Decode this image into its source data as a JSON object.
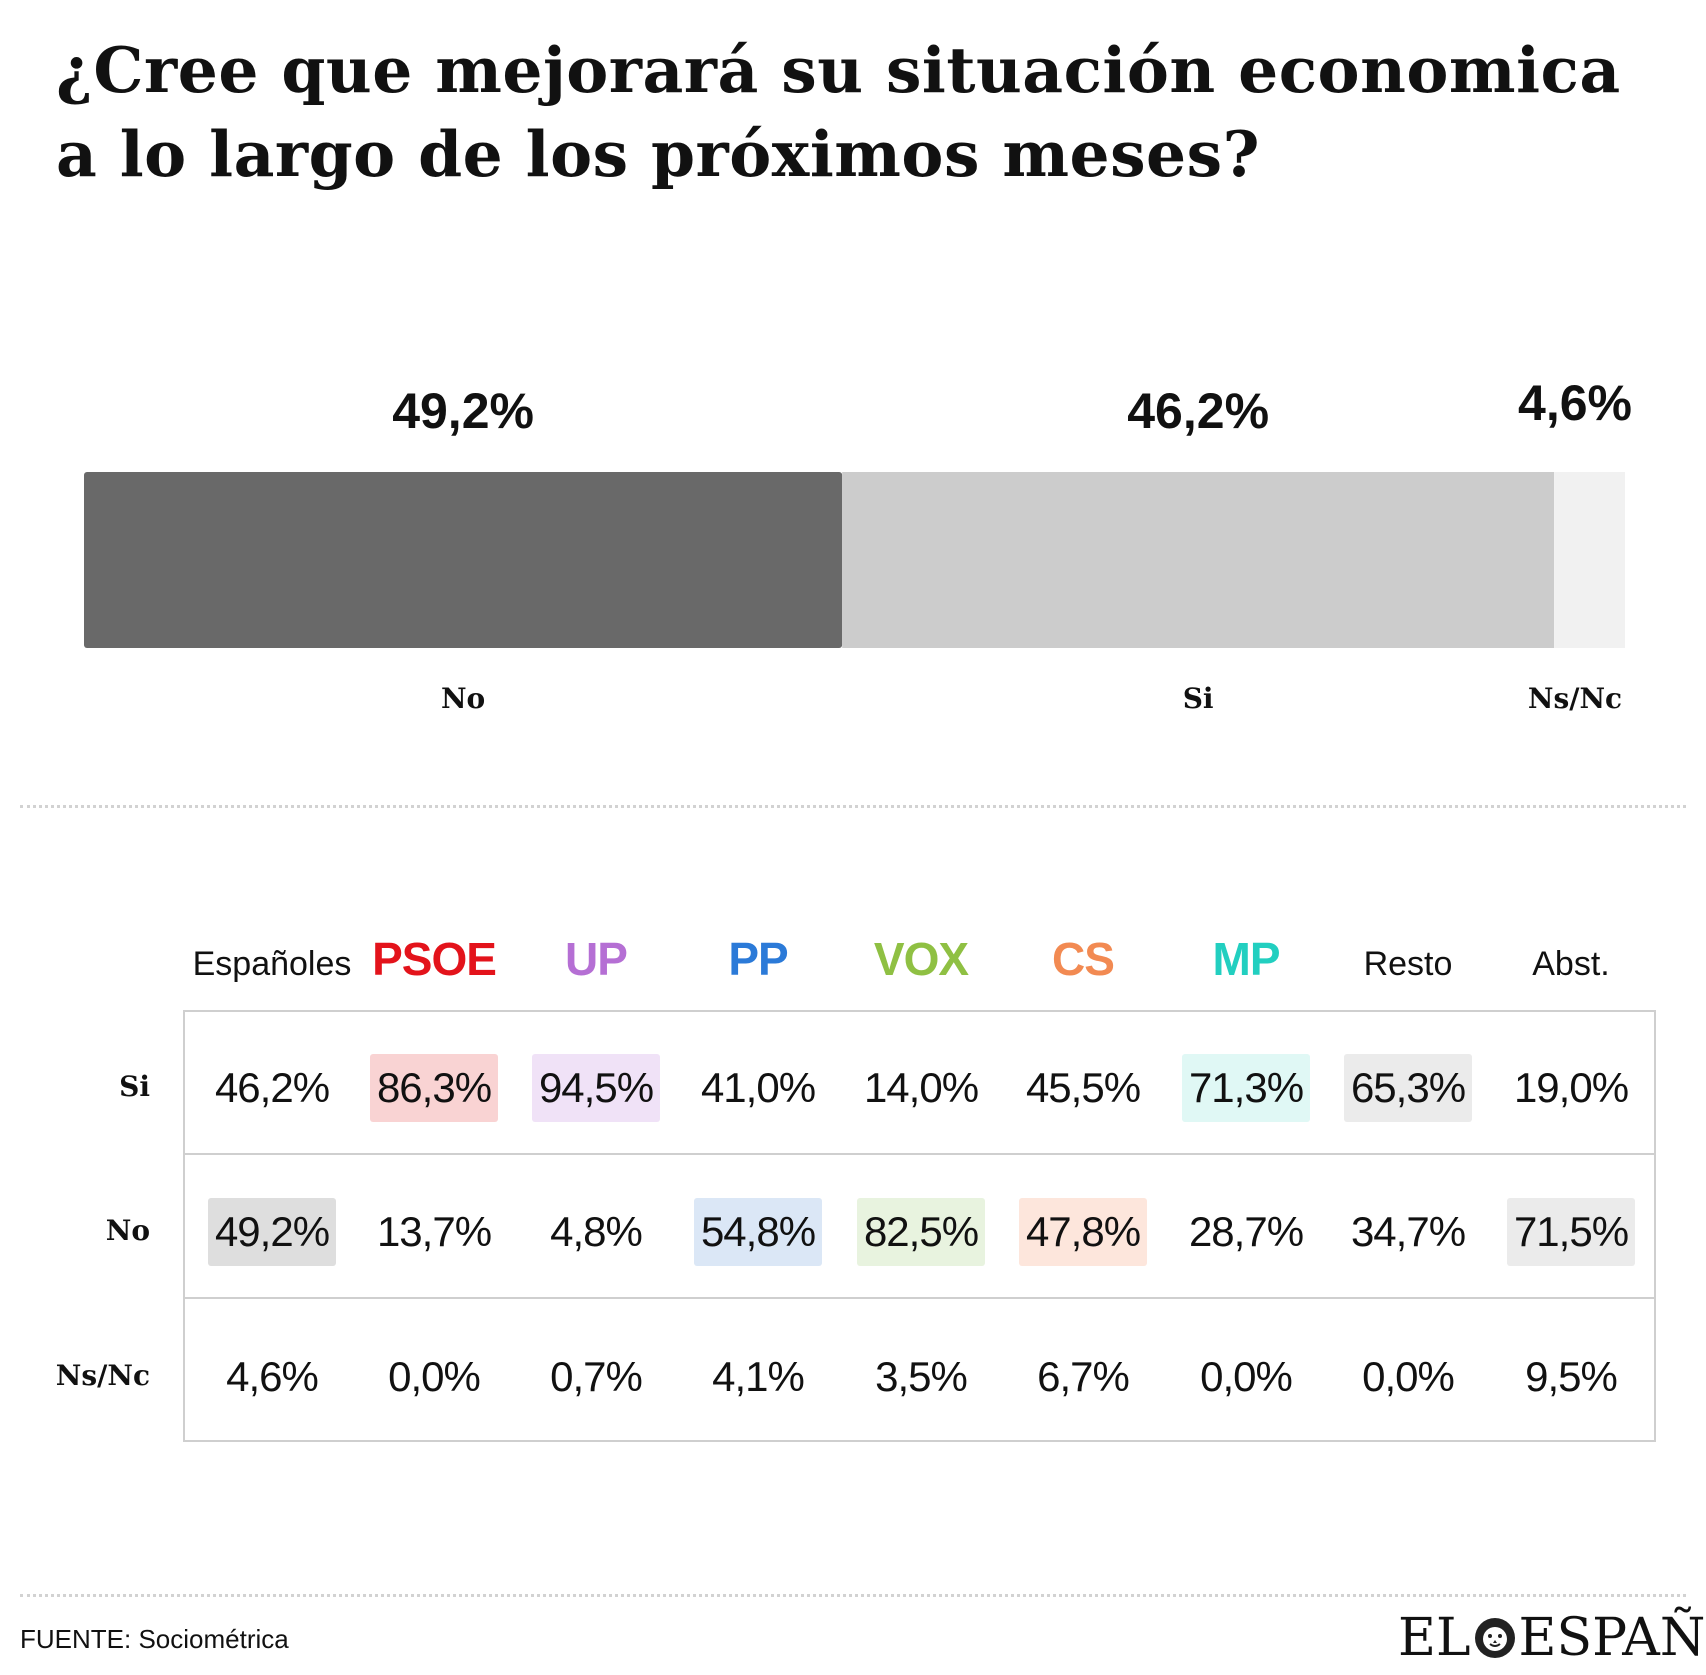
{
  "title": "¿Cree que mejorará su situación economica a lo largo de los próximos meses?",
  "chart_data": [
    {
      "type": "bar",
      "subtype": "stacked-100",
      "categories": [
        "No",
        "Si",
        "Ns/Nc"
      ],
      "values": [
        49.2,
        46.2,
        4.6
      ],
      "labels": [
        "49,2%",
        "46,2%",
        "4,6%"
      ],
      "colors": [
        "#696969",
        "#cccccc",
        "#f1f1f1"
      ]
    },
    {
      "type": "table",
      "columns": [
        {
          "name": "Españoles",
          "color": "#111111",
          "party": false
        },
        {
          "name": "PSOE",
          "color": "#e3131b",
          "party": true
        },
        {
          "name": "UP",
          "color": "#b56fd4",
          "party": true
        },
        {
          "name": "PP",
          "color": "#2b7ad8",
          "party": true
        },
        {
          "name": "VOX",
          "color": "#8fc043",
          "party": true
        },
        {
          "name": "CS",
          "color": "#f28a52",
          "party": true
        },
        {
          "name": "MP",
          "color": "#22cfc0",
          "party": true
        },
        {
          "name": "Resto",
          "color": "#111111",
          "party": false
        },
        {
          "name": "Abst.",
          "color": "#111111",
          "party": false
        }
      ],
      "rows": [
        {
          "label": "Si",
          "cells": [
            "46,2%",
            "86,3%",
            "94,5%",
            "41,0%",
            "14,0%",
            "45,5%",
            "71,3%",
            "65,3%",
            "19,0%"
          ],
          "highlight": [
            null,
            "#f9d3d3",
            "#f0e2f7",
            null,
            null,
            null,
            "#e0f8f5",
            "#ebebeb",
            null
          ]
        },
        {
          "label": "No",
          "cells": [
            "49,2%",
            "13,7%",
            "4,8%",
            "54,8%",
            "82,5%",
            "47,8%",
            "28,7%",
            "34,7%",
            "71,5%"
          ],
          "highlight": [
            "#dedede",
            null,
            null,
            "#dbe7f6",
            "#e8f3df",
            "#fde6dc",
            null,
            null,
            "#ebebeb"
          ]
        },
        {
          "label": "Ns/Nc",
          "cells": [
            "4,6%",
            "0,0%",
            "0,7%",
            "4,1%",
            "3,5%",
            "6,7%",
            "0,0%",
            "0,0%",
            "9,5%"
          ],
          "highlight": [
            null,
            null,
            null,
            null,
            null,
            null,
            null,
            null,
            null
          ]
        }
      ]
    }
  ],
  "source": "FUENTE: Sociométrica",
  "logo": {
    "left": "EL",
    "right": "ESPAÑOL",
    "icon": "lion-head-icon"
  }
}
